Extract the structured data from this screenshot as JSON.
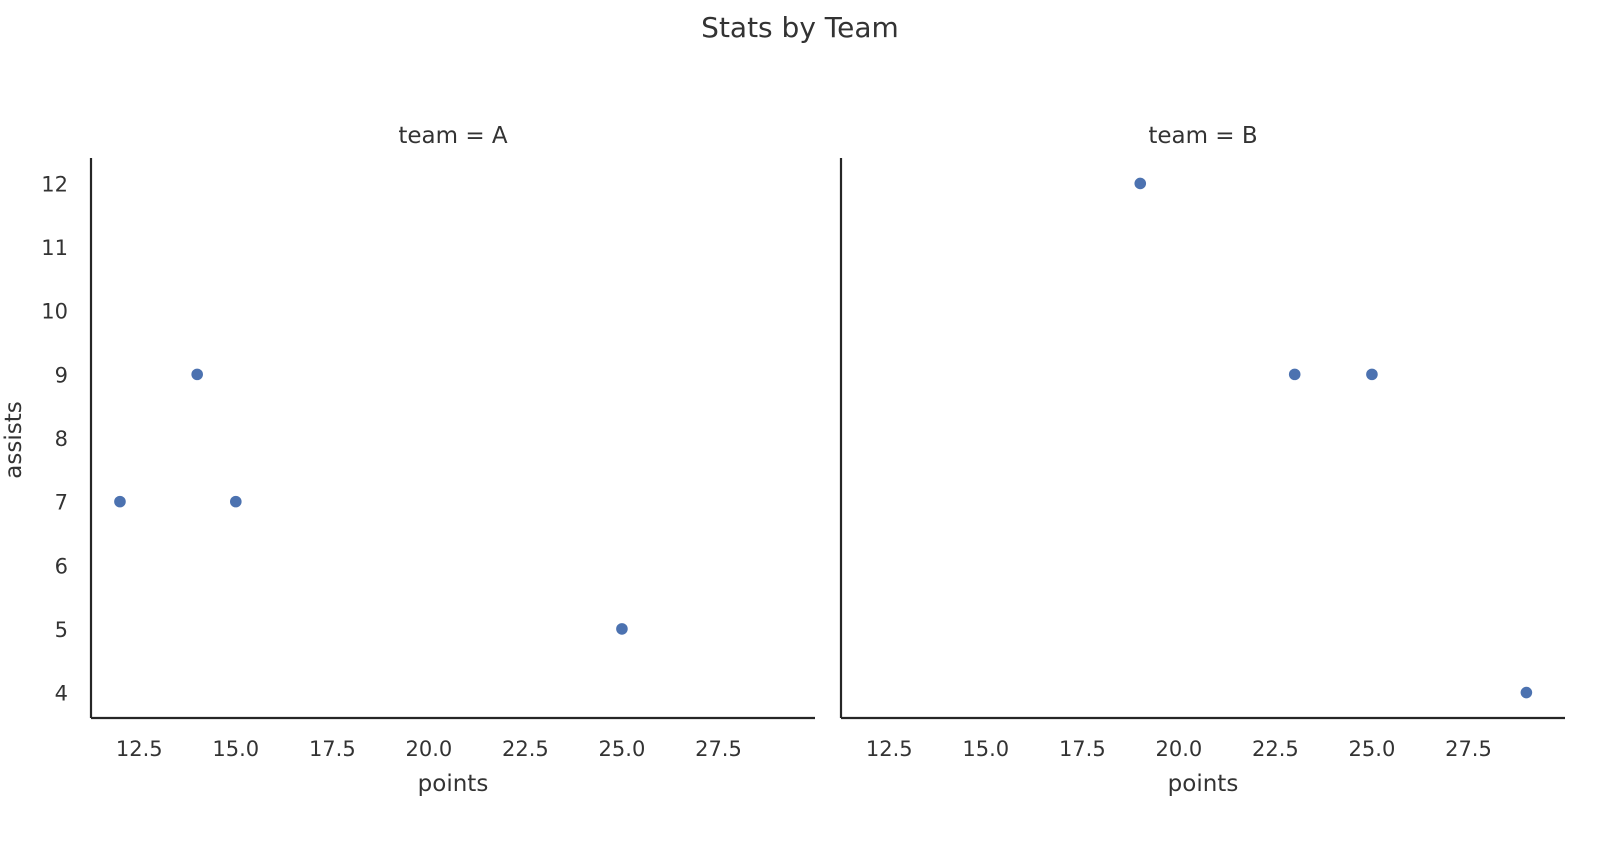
{
  "title": "Stats by Team",
  "chart_data": [
    {
      "type": "scatter",
      "title": "team = A",
      "xlabel": "points",
      "ylabel": "assists",
      "xlim": [
        11.25,
        30.0
      ],
      "ylim": [
        3.6,
        12.4
      ],
      "xticks": [
        12.5,
        15.0,
        17.5,
        20.0,
        22.5,
        25.0,
        27.5
      ],
      "xtick_labels": [
        "12.5",
        "15.0",
        "17.5",
        "20.0",
        "22.5",
        "25.0",
        "27.5"
      ],
      "yticks": [
        4,
        5,
        6,
        7,
        8,
        9,
        10,
        11,
        12
      ],
      "ytick_labels": [
        "4",
        "5",
        "6",
        "7",
        "8",
        "9",
        "10",
        "11",
        "12"
      ],
      "grid": false,
      "series": [
        {
          "color": "#4c72b0",
          "x": [
            12,
            14,
            15,
            25
          ],
          "y": [
            7,
            9,
            7,
            5
          ]
        }
      ]
    },
    {
      "type": "scatter",
      "title": "team = B",
      "xlabel": "points",
      "ylabel": "",
      "xlim": [
        11.25,
        30.0
      ],
      "ylim": [
        3.6,
        12.4
      ],
      "xticks": [
        12.5,
        15.0,
        17.5,
        20.0,
        22.5,
        25.0,
        27.5
      ],
      "xtick_labels": [
        "12.5",
        "15.0",
        "17.5",
        "20.0",
        "22.5",
        "25.0",
        "27.5"
      ],
      "yticks": [],
      "ytick_labels": [],
      "grid": false,
      "series": [
        {
          "color": "#4c72b0",
          "x": [
            19,
            23,
            25,
            29
          ],
          "y": [
            12,
            9,
            9,
            4
          ]
        }
      ]
    }
  ]
}
